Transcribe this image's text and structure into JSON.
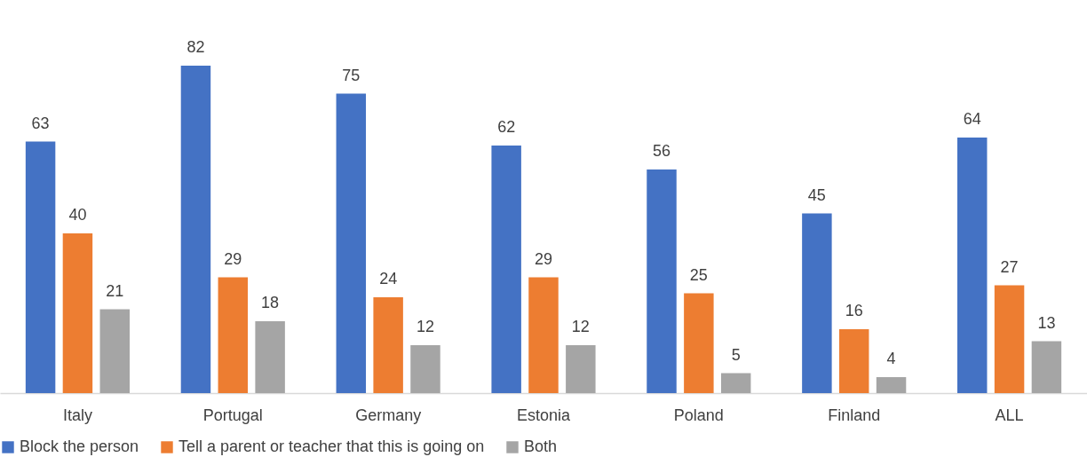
{
  "chart_data": {
    "type": "bar",
    "categories": [
      "Italy",
      "Portugal",
      "Germany",
      "Estonia",
      "Poland",
      "Finland",
      "ALL"
    ],
    "series": [
      {
        "name": "Block the person",
        "color": "#4472c4",
        "values": [
          63,
          82,
          75,
          62,
          56,
          45,
          64
        ]
      },
      {
        "name": "Tell a parent or teacher that this is going on",
        "color": "#ed7d31",
        "values": [
          40,
          29,
          24,
          29,
          25,
          16,
          27
        ]
      },
      {
        "name": "Both",
        "color": "#a5a5a5",
        "values": [
          21,
          18,
          12,
          12,
          5,
          4,
          13
        ]
      }
    ],
    "data_labels": true,
    "legend": "bottom",
    "grid": false,
    "tick_labels": "x"
  }
}
